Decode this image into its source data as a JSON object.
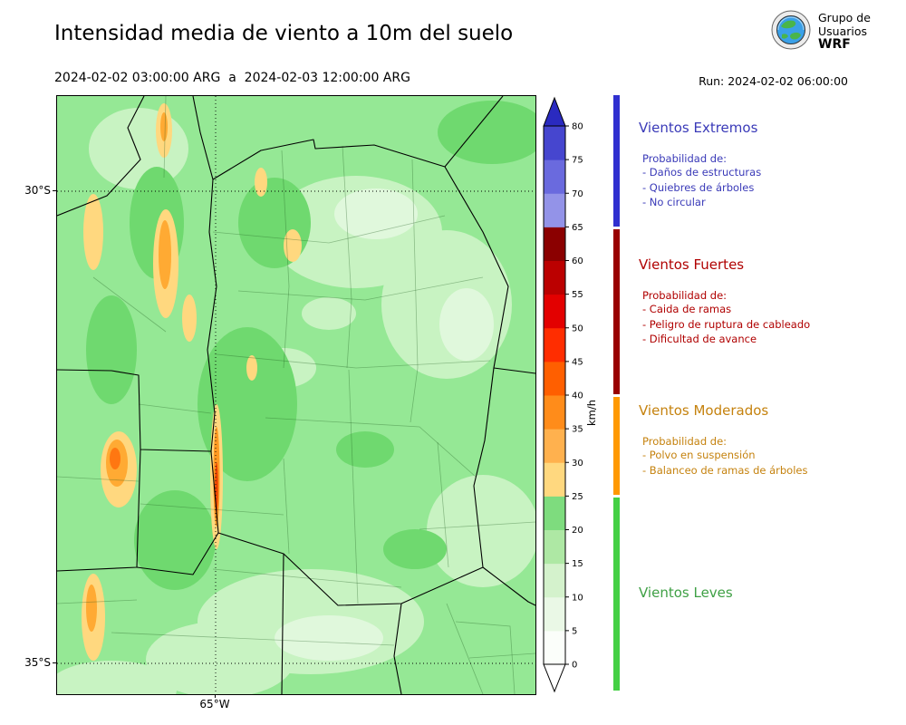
{
  "header": {
    "title": "Intensidad media de viento a 10m del suelo",
    "date_range": "2024-02-02 03:00:00 ARG  a  2024-02-03 12:00:00 ARG",
    "run": "Run: 2024-02-02 06:00:00",
    "logo": {
      "line1": "Grupo de",
      "line2": "Usuarios",
      "line3": "WRF"
    }
  },
  "map": {
    "ytick_top": "30°S",
    "ytick_bottom": "35°S",
    "xtick": "65°W",
    "background_color": "#95e895"
  },
  "colorbar": {
    "unit": "km/h",
    "ticks": [
      0,
      5,
      10,
      15,
      20,
      25,
      30,
      35,
      40,
      45,
      50,
      55,
      60,
      65,
      70,
      75,
      80
    ],
    "segments_bottom_to_top": [
      "#fbfefa",
      "#eaf8e6",
      "#d4f2cc",
      "#aee8a4",
      "#7edc7e",
      "#ffd87f",
      "#ffb14e",
      "#ff8c1a",
      "#ff5f00",
      "#ff2d00",
      "#e30000",
      "#bb0000",
      "#8b0000",
      "#9393e8",
      "#6a6ade",
      "#4646cf"
    ],
    "arrow_color": "#2a2ac0",
    "below_color": "#ffffff"
  },
  "legend": {
    "sections": [
      {
        "title": "Vientos Extremos",
        "subtitle": "Probabilidad de:",
        "items": [
          "- Daños de estructuras",
          "- Quiebres de árboles",
          "- No circular"
        ],
        "text_color": "#3a3ab8",
        "bar_color": "#3030d0"
      },
      {
        "title": "Vientos Fuertes",
        "subtitle": "Probabilidad de:",
        "items": [
          "- Caida de ramas",
          "- Peligro de ruptura de cableado",
          "- Dificultad de avance"
        ],
        "text_color": "#b00000",
        "bar_color": "#990000"
      },
      {
        "title": "Vientos Moderados",
        "subtitle": "Probabilidad de:",
        "items": [
          "- Polvo en suspensión",
          "- Balanceo de ramas de árboles"
        ],
        "text_color": "#c5820e",
        "bar_color": "#ff9900"
      },
      {
        "title": "Vientos Leves",
        "subtitle": "",
        "items": [],
        "text_color": "#3fa045",
        "bar_color": "#44d044"
      }
    ]
  }
}
